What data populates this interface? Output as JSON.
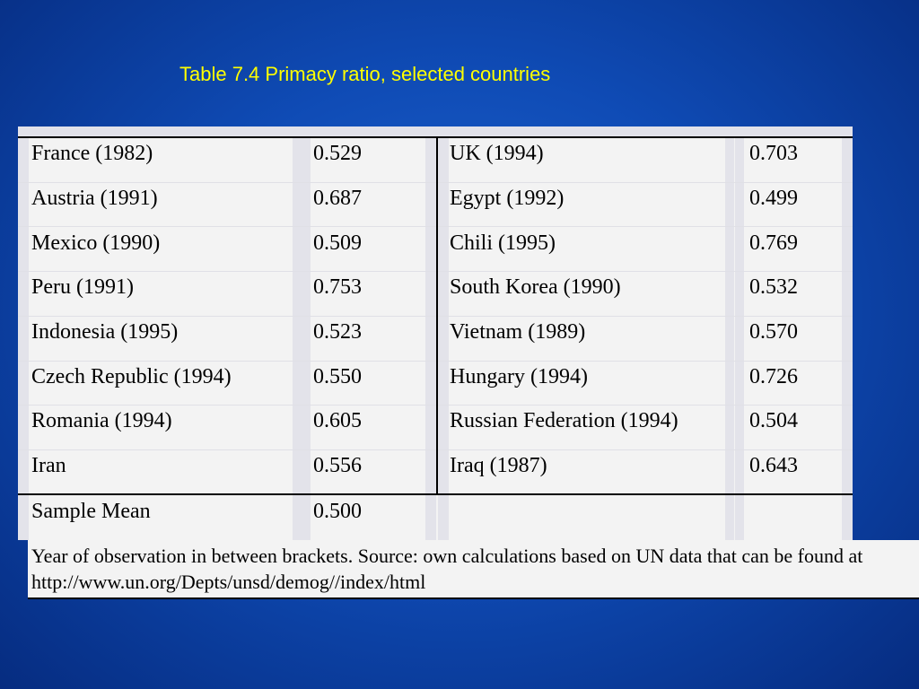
{
  "title": "Table 7.4 Primacy ratio, selected countries",
  "rows": [
    {
      "c1": "France (1982)",
      "v1": "0.529",
      "c2": "UK (1994)",
      "v2": "0.703"
    },
    {
      "c1": "Austria (1991)",
      "v1": "0.687",
      "c2": "Egypt (1992)",
      "v2": "0.499"
    },
    {
      "c1": "Mexico (1990)",
      "v1": "0.509",
      "c2": "Chili (1995)",
      "v2": "0.769"
    },
    {
      "c1": "Peru (1991)",
      "v1": "0.753",
      "c2": "South Korea (1990)",
      "v2": "0.532"
    },
    {
      "c1": "Indonesia (1995)",
      "v1": "0.523",
      "c2": "Vietnam (1989)",
      "v2": "0.570"
    },
    {
      "c1": "Czech Republic (1994)",
      "v1": "0.550",
      "c2": "Hungary (1994)",
      "v2": "0.726"
    },
    {
      "c1": "Romania (1994)",
      "v1": "0.605",
      "c2": "Russian Federation (1994)",
      "v2": "0.504"
    },
    {
      "c1": "Iran",
      "v1": "0.556",
      "c2": "Iraq (1987)",
      "v2": "0.643"
    }
  ],
  "mean": {
    "label": "Sample Mean",
    "value": "0.500"
  },
  "note": "Year of observation in between brackets. Source: own calculations based on UN data that can be found at http://www.un.org/Depts/unsd/demog//index/html",
  "colors": {
    "background": "#0f4bb5",
    "title": "#ffff00",
    "table": "#f3f3f3"
  }
}
